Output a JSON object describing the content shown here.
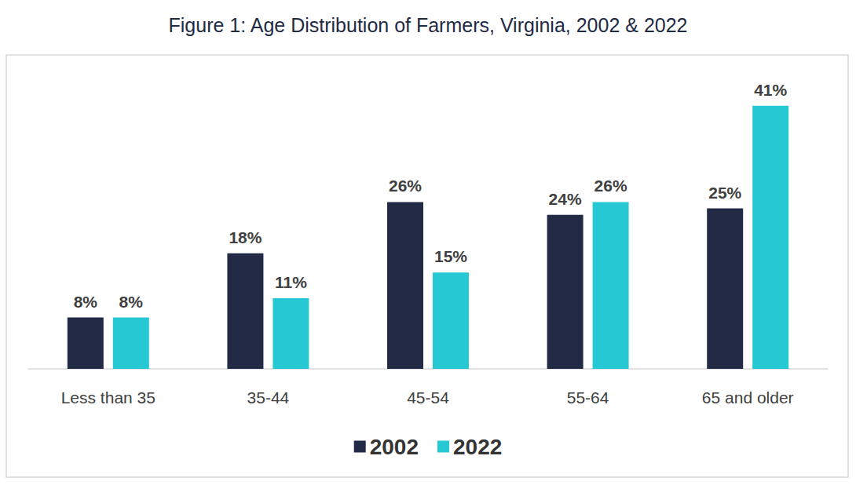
{
  "chart_data": {
    "type": "bar",
    "title": "Figure 1: Age Distribution of Farmers, Virginia, 2002 & 2022",
    "categories": [
      "Less than 35",
      "35-44",
      "45-54",
      "55-64",
      "65 and older"
    ],
    "series": [
      {
        "name": "2002",
        "color": "#222a45",
        "values": [
          8,
          18,
          26,
          24,
          25
        ],
        "value_labels": [
          "8%",
          "18%",
          "26%",
          "24%",
          "25%"
        ]
      },
      {
        "name": "2022",
        "color": "#26c9d3",
        "values": [
          8,
          11,
          15,
          26,
          41
        ],
        "value_labels": [
          "8%",
          "11%",
          "15%",
          "26%",
          "41%"
        ]
      }
    ],
    "ylim": [
      0,
      45
    ],
    "grid": false,
    "legend": "bottom",
    "data_labels": true,
    "tick_labels": "x"
  }
}
